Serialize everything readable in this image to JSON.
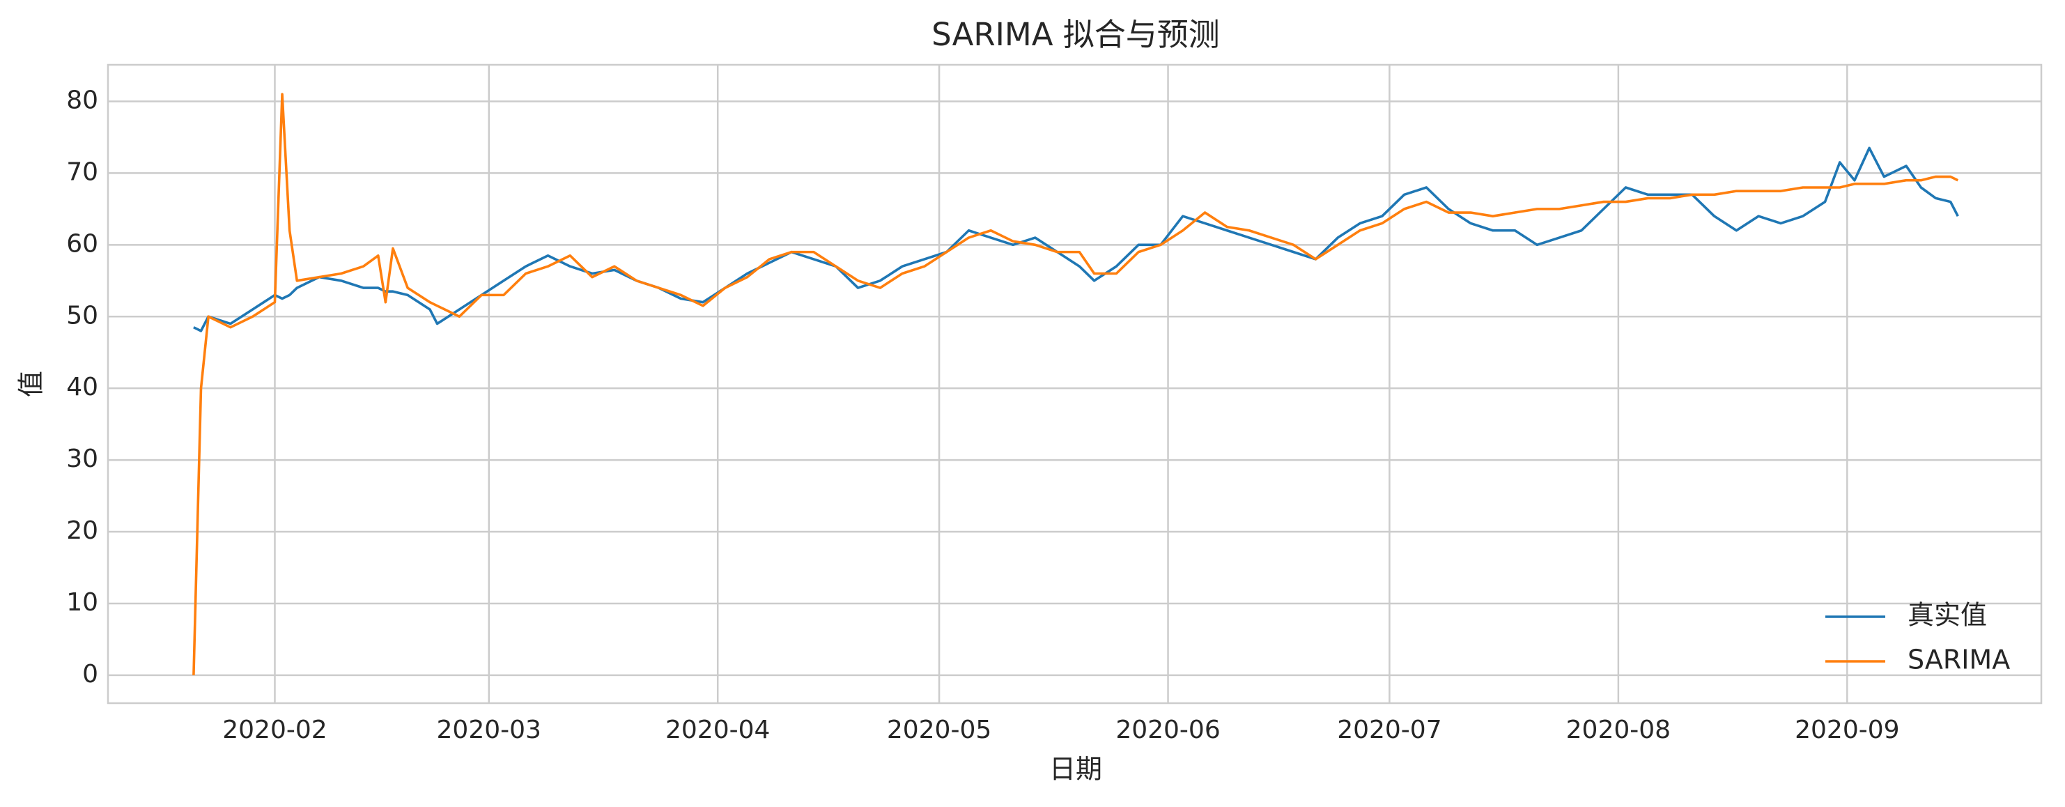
{
  "chart_data": {
    "type": "line",
    "title": "SARIMA 拟合与预测",
    "x_label": "日期",
    "y_label": "值",
    "x": [
      20,
      21,
      22,
      25,
      28,
      31,
      32,
      33,
      34,
      37,
      40,
      43,
      45,
      46,
      47,
      49,
      52,
      53,
      56,
      59,
      62,
      65,
      68,
      71,
      74,
      77,
      80,
      83,
      86,
      89,
      92,
      95,
      98,
      101,
      104,
      107,
      110,
      113,
      116,
      119,
      122,
      125,
      128,
      131,
      134,
      137,
      140,
      142,
      145,
      148,
      151,
      154,
      157,
      160,
      163,
      166,
      169,
      172,
      175,
      178,
      181,
      184,
      187,
      190,
      193,
      196,
      199,
      202,
      205,
      208,
      211,
      214,
      217,
      220,
      223,
      226,
      229,
      232,
      235,
      238,
      241,
      243,
      245,
      247,
      249,
      252,
      254,
      256,
      258,
      259
    ],
    "series": [
      {
        "name": "真实值",
        "color": "#1f77b4",
        "values": [
          48.5,
          48,
          50,
          49,
          51,
          53,
          52.5,
          53,
          54,
          55.5,
          55,
          54,
          54,
          53.5,
          53.5,
          53,
          51,
          49,
          51,
          53,
          55,
          57,
          58.5,
          57,
          56,
          56.5,
          55,
          54,
          52.5,
          52,
          54,
          56,
          57.5,
          59,
          58,
          57,
          54,
          55,
          57,
          58,
          59,
          62,
          61,
          60,
          61,
          59,
          57,
          55,
          57,
          60,
          60,
          64,
          63,
          62,
          61,
          60,
          59,
          58,
          61,
          63,
          64,
          67,
          68,
          65,
          63,
          62,
          62,
          60,
          61,
          62,
          65,
          68,
          67,
          67,
          67,
          64,
          62,
          64,
          63,
          64,
          66,
          71.5,
          69,
          73.5,
          69.5,
          71,
          68,
          66.5,
          66,
          64
        ]
      },
      {
        "name": "SARIMA",
        "color": "#ff7f0e",
        "values": [
          0,
          40,
          50,
          48.5,
          50,
          52,
          81,
          62,
          55,
          55.5,
          56,
          57,
          58.5,
          52,
          59.5,
          54,
          52,
          51.5,
          50,
          53,
          53,
          56,
          57,
          58.5,
          55.5,
          57,
          55,
          54,
          53,
          51.5,
          54,
          55.5,
          58,
          59,
          59,
          57,
          55,
          54,
          56,
          57,
          59,
          61,
          62,
          60.5,
          60,
          59,
          59,
          56,
          56,
          59,
          60,
          62,
          64.5,
          62.5,
          62,
          61,
          60,
          58,
          60,
          62,
          63,
          65,
          66,
          64.5,
          64.5,
          64,
          64.5,
          65,
          65,
          65.5,
          66,
          66,
          66.5,
          66.5,
          67,
          67,
          67.5,
          67.5,
          67.5,
          68,
          68,
          68,
          68.5,
          68.5,
          68.5,
          69,
          69,
          69.5,
          69.5,
          69
        ]
      }
    ],
    "xlim": [
      8.4,
      270.3
    ],
    "ylim": [
      -3.9,
      85.1
    ],
    "xticks": [
      {
        "value": 31,
        "label": "2020-02"
      },
      {
        "value": 60,
        "label": "2020-03"
      },
      {
        "value": 91,
        "label": "2020-04"
      },
      {
        "value": 121,
        "label": "2020-05"
      },
      {
        "value": 152,
        "label": "2020-06"
      },
      {
        "value": 182,
        "label": "2020-07"
      },
      {
        "value": 213,
        "label": "2020-08"
      },
      {
        "value": 244,
        "label": "2020-09"
      }
    ],
    "yticks": [
      0,
      10,
      20,
      30,
      40,
      50,
      60,
      70,
      80
    ],
    "grid": true,
    "legend": "lower right"
  }
}
